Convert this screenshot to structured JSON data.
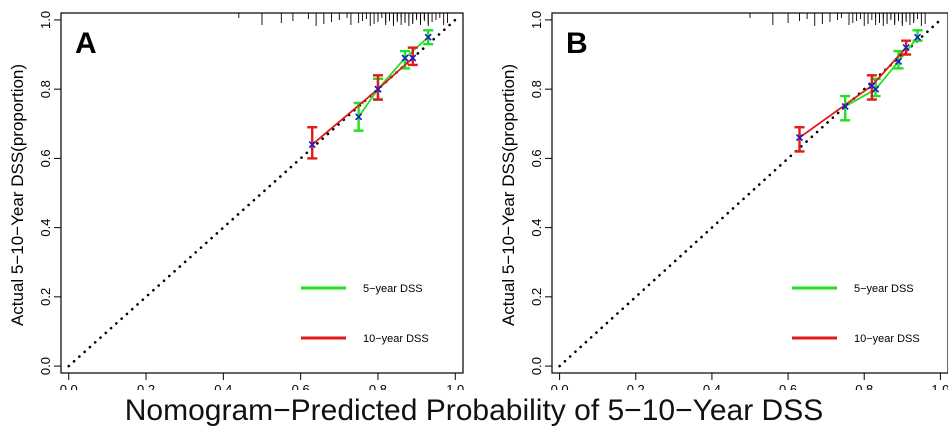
{
  "figure": {
    "xlabel": "Nomogram−Predicted Probability of 5−10−Year DSS"
  },
  "colors": {
    "series_5yr": "#22e022",
    "series_10yr": "#e01a1a",
    "points": "#1a1ad0",
    "ideal": "#000000",
    "frame": "#000000"
  },
  "chart_data": [
    {
      "type": "line",
      "panel_label": "A",
      "ylabel": "Actual 5−10−Year DSS(proportion)",
      "xlim": [
        -0.02,
        1.02
      ],
      "ylim": [
        -0.02,
        1.02
      ],
      "x_ticks": [
        "0.0",
        "0.2",
        "0.4",
        "0.6",
        "0.8",
        "1.0"
      ],
      "y_ticks": [
        "0.0",
        "0.2",
        "0.4",
        "0.6",
        "0.8",
        "1.0"
      ],
      "legend": {
        "placement": "bottom-right",
        "entries": [
          "5−year DSS",
          "10−year DSS"
        ]
      },
      "ideal_line": {
        "x": [
          0,
          1
        ],
        "y": [
          0,
          1
        ],
        "style": "dotted"
      },
      "series": [
        {
          "name": "5−year DSS",
          "color": "#22e022",
          "x": [
            0.75,
            0.8,
            0.87,
            0.93
          ],
          "y": [
            0.72,
            0.8,
            0.89,
            0.95
          ],
          "lower": [
            0.68,
            0.77,
            0.86,
            0.93
          ],
          "upper": [
            0.76,
            0.83,
            0.91,
            0.97
          ]
        },
        {
          "name": "10−year DSS",
          "color": "#e01a1a",
          "x": [
            0.63,
            0.8,
            0.89
          ],
          "y": [
            0.64,
            0.8,
            0.89
          ],
          "lower": [
            0.6,
            0.77,
            0.87
          ],
          "upper": [
            0.69,
            0.84,
            0.92
          ]
        }
      ],
      "rug": [
        0.44,
        0.5,
        0.55,
        0.58,
        0.62,
        0.64,
        0.66,
        0.68,
        0.7,
        0.72,
        0.73,
        0.75,
        0.76,
        0.77,
        0.78,
        0.79,
        0.8,
        0.8,
        0.81,
        0.82,
        0.82,
        0.83,
        0.83,
        0.84,
        0.84,
        0.85,
        0.85,
        0.86,
        0.86,
        0.87,
        0.87,
        0.88,
        0.88,
        0.89,
        0.89,
        0.9,
        0.9,
        0.91,
        0.91,
        0.92,
        0.92,
        0.93,
        0.93,
        0.94,
        0.95,
        0.96,
        0.97,
        0.98
      ]
    },
    {
      "type": "line",
      "panel_label": "B",
      "ylabel": "Actual 5−10−Year DSS(proportion)",
      "xlim": [
        -0.02,
        1.02
      ],
      "ylim": [
        -0.02,
        1.02
      ],
      "x_ticks": [
        "0.0",
        "0.2",
        "0.4",
        "0.6",
        "0.8",
        "1.0"
      ],
      "y_ticks": [
        "0.0",
        "0.2",
        "0.4",
        "0.6",
        "0.8",
        "1.0"
      ],
      "legend": {
        "placement": "bottom-right",
        "entries": [
          "5−year DSS",
          "10−year DSS"
        ]
      },
      "ideal_line": {
        "x": [
          0,
          1
        ],
        "y": [
          0,
          1
        ],
        "style": "dotted"
      },
      "series": [
        {
          "name": "5−year DSS",
          "color": "#22e022",
          "x": [
            0.75,
            0.83,
            0.89,
            0.94
          ],
          "y": [
            0.75,
            0.8,
            0.88,
            0.95
          ],
          "lower": [
            0.71,
            0.78,
            0.86,
            0.94
          ],
          "upper": [
            0.78,
            0.83,
            0.91,
            0.97
          ]
        },
        {
          "name": "10−year DSS",
          "color": "#e01a1a",
          "x": [
            0.63,
            0.82,
            0.91
          ],
          "y": [
            0.66,
            0.81,
            0.92
          ],
          "lower": [
            0.62,
            0.77,
            0.9
          ],
          "upper": [
            0.69,
            0.84,
            0.94
          ]
        }
      ],
      "rug": [
        0.5,
        0.56,
        0.6,
        0.63,
        0.65,
        0.67,
        0.69,
        0.71,
        0.73,
        0.74,
        0.76,
        0.77,
        0.78,
        0.79,
        0.8,
        0.81,
        0.81,
        0.82,
        0.83,
        0.83,
        0.84,
        0.84,
        0.85,
        0.85,
        0.86,
        0.86,
        0.87,
        0.87,
        0.88,
        0.88,
        0.89,
        0.89,
        0.9,
        0.9,
        0.91,
        0.91,
        0.92,
        0.92,
        0.93,
        0.93,
        0.94,
        0.95,
        0.96
      ]
    }
  ]
}
